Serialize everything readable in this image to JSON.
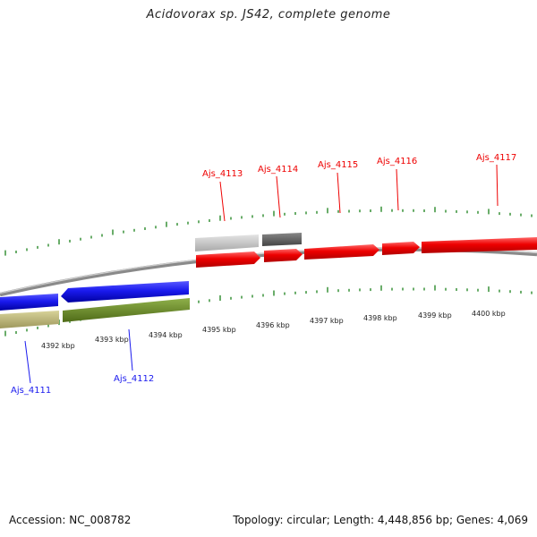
{
  "title": "Acidovorax sp. JS42, complete genome",
  "footer": {
    "accession": "Accession: NC_008782",
    "summary": "Topology: circular; Length: 4,448,856 bp; Genes: 4,069"
  },
  "kbp_labels": [
    "4392 kbp",
    "4393 kbp",
    "4394 kbp",
    "4395 kbp",
    "4396 kbp",
    "4397 kbp",
    "4398 kbp",
    "4399 kbp",
    "4400 kbp"
  ],
  "genes": {
    "ajs_4111": "Ajs_4111",
    "ajs_4112": "Ajs_4112",
    "ajs_4113": "Ajs_4113",
    "ajs_4114": "Ajs_4114",
    "ajs_4115": "Ajs_4115",
    "ajs_4116": "Ajs_4116",
    "ajs_4117": "Ajs_4117"
  },
  "colors": {
    "forward_gene": "#ee0000",
    "reverse_gene": "#1a1aee",
    "tick": "#2a8a2a",
    "backbone": "#888888",
    "light_gray_feature": "#c8c8c8",
    "dark_gray_feature": "#666666",
    "khaki_feature": "#bdb77a",
    "olive_feature": "#6b8e23"
  }
}
